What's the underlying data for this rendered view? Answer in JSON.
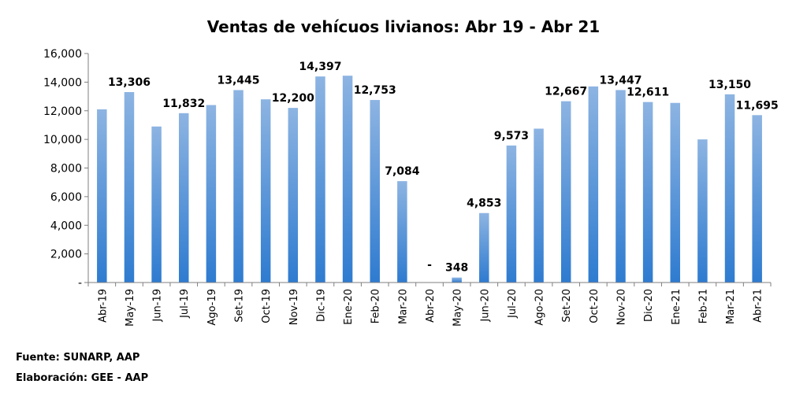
{
  "notes": {
    "source": "Fuente: SUNARP, AAP",
    "elaboration": "Elaboración: GEE - AAP"
  },
  "colors": {
    "bar_top": "#8db4e2",
    "bar_bottom": "#2e7bd0",
    "axis": "#7f7f7f",
    "text": "#000000"
  },
  "chart_data": {
    "type": "bar",
    "title": "Ventas de vehícuos livianos: Abr 19 - Abr 21",
    "xlabel": "",
    "ylabel": "",
    "ylim": [
      0,
      16000
    ],
    "yticks": [
      0,
      2000,
      4000,
      6000,
      8000,
      10000,
      12000,
      14000,
      16000
    ],
    "ytick_labels": [
      "-",
      "2,000",
      "4,000",
      "6,000",
      "8,000",
      "10,000",
      "12,000",
      "14,000",
      "16,000"
    ],
    "grid": false,
    "categories": [
      "Abr-19",
      "May-19",
      "Jun-19",
      "Jul-19",
      "Ago-19",
      "Set-19",
      "Oct-19",
      "Nov-19",
      "Dic-19",
      "Ene-20",
      "Feb-20",
      "Mar-20",
      "Abr-20",
      "May-20",
      "Jun-20",
      "Jul-20",
      "Ago-20",
      "Set-20",
      "Oct-20",
      "Nov-20",
      "Dic-20",
      "Ene-21",
      "Feb-21",
      "Mar-21",
      "Abr-21"
    ],
    "values": [
      12100,
      13306,
      10900,
      11832,
      12400,
      13445,
      12800,
      12200,
      14397,
      14450,
      12753,
      7084,
      0,
      348,
      4853,
      9573,
      10750,
      12667,
      13700,
      13447,
      12611,
      12550,
      10000,
      13150,
      11695
    ],
    "data_labels": [
      "",
      "13,306",
      "",
      "11,832",
      "",
      "13,445",
      "",
      "12,200",
      "14,397",
      "",
      "12,753",
      "7,084",
      "-",
      "348",
      "4,853",
      "9,573",
      "",
      "12,667",
      "",
      "13,447",
      "12,611",
      "",
      "",
      "13,150",
      "11,695"
    ]
  }
}
